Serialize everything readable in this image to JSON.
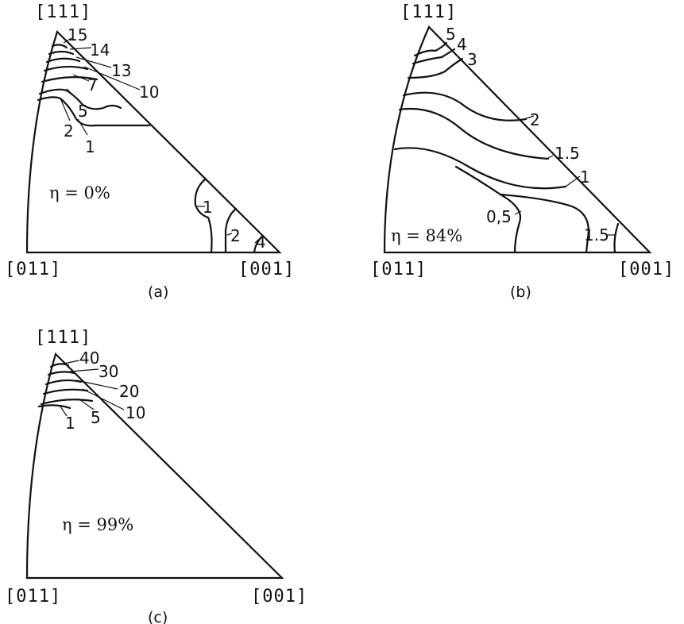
{
  "panels": [
    {
      "caption": "(a)",
      "eta_label": "η = 0%",
      "corners": {
        "top": "[111]",
        "left": "[011]",
        "right": "[001]"
      },
      "contour_labels": [
        "15",
        "14",
        "13",
        "10",
        "7",
        "5",
        "2",
        "1",
        "1",
        "2",
        "4"
      ]
    },
    {
      "caption": "(b)",
      "eta_label": "η = 84%",
      "corners": {
        "top": "[111]",
        "left": "[011]",
        "right": "[001]"
      },
      "contour_labels": [
        "5",
        "4",
        "3",
        "2",
        "1.5",
        "1",
        "0,5",
        "1.5"
      ]
    },
    {
      "caption": "(c)",
      "eta_label": "η = 99%",
      "corners": {
        "top": "[111]",
        "left": "[011]",
        "right": "[001]"
      },
      "contour_labels": [
        "40",
        "30",
        "20",
        "10",
        "5",
        "1"
      ]
    }
  ]
}
